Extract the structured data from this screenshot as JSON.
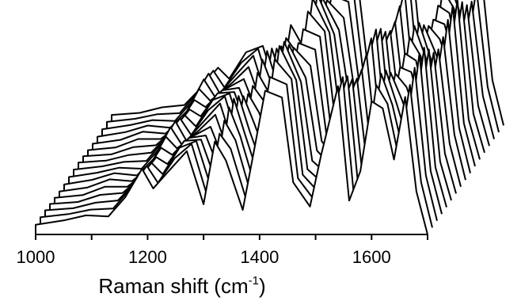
{
  "chart_data": {
    "type": "line",
    "subtype": "waterfall-3d",
    "title": "",
    "xlabel": "Raman shift (cm",
    "xlabel_sup": "-1",
    "xlabel_end": ")",
    "ylabel": "",
    "xlim": [
      1000,
      1700
    ],
    "x_ticks": [
      1000,
      1100,
      1200,
      1300,
      1400,
      1500,
      1600,
      1700
    ],
    "x_tick_labels": [
      "1000",
      "1200",
      "1400",
      "1600"
    ],
    "x_tick_label_values": [
      1000,
      1200,
      1400,
      1600
    ],
    "grid": false,
    "legend": "none",
    "series_count": 17,
    "baseline": 0,
    "series_template": {
      "x": [
        1000,
        1050,
        1090,
        1130,
        1160,
        1190,
        1210,
        1240,
        1270,
        1300,
        1320,
        1340,
        1370,
        1390,
        1410,
        1440,
        1460,
        1490,
        1510,
        1540,
        1560,
        1580,
        1600,
        1620,
        1640,
        1660,
        1680,
        1700
      ],
      "y": [
        6,
        8,
        12,
        12,
        22,
        38,
        30,
        42,
        48,
        18,
        62,
        46,
        14,
        52,
        96,
        82,
        30,
        18,
        52,
        86,
        20,
        42,
        84,
        72,
        46,
        92,
        26,
        0
      ]
    },
    "line_color": "#000000"
  }
}
